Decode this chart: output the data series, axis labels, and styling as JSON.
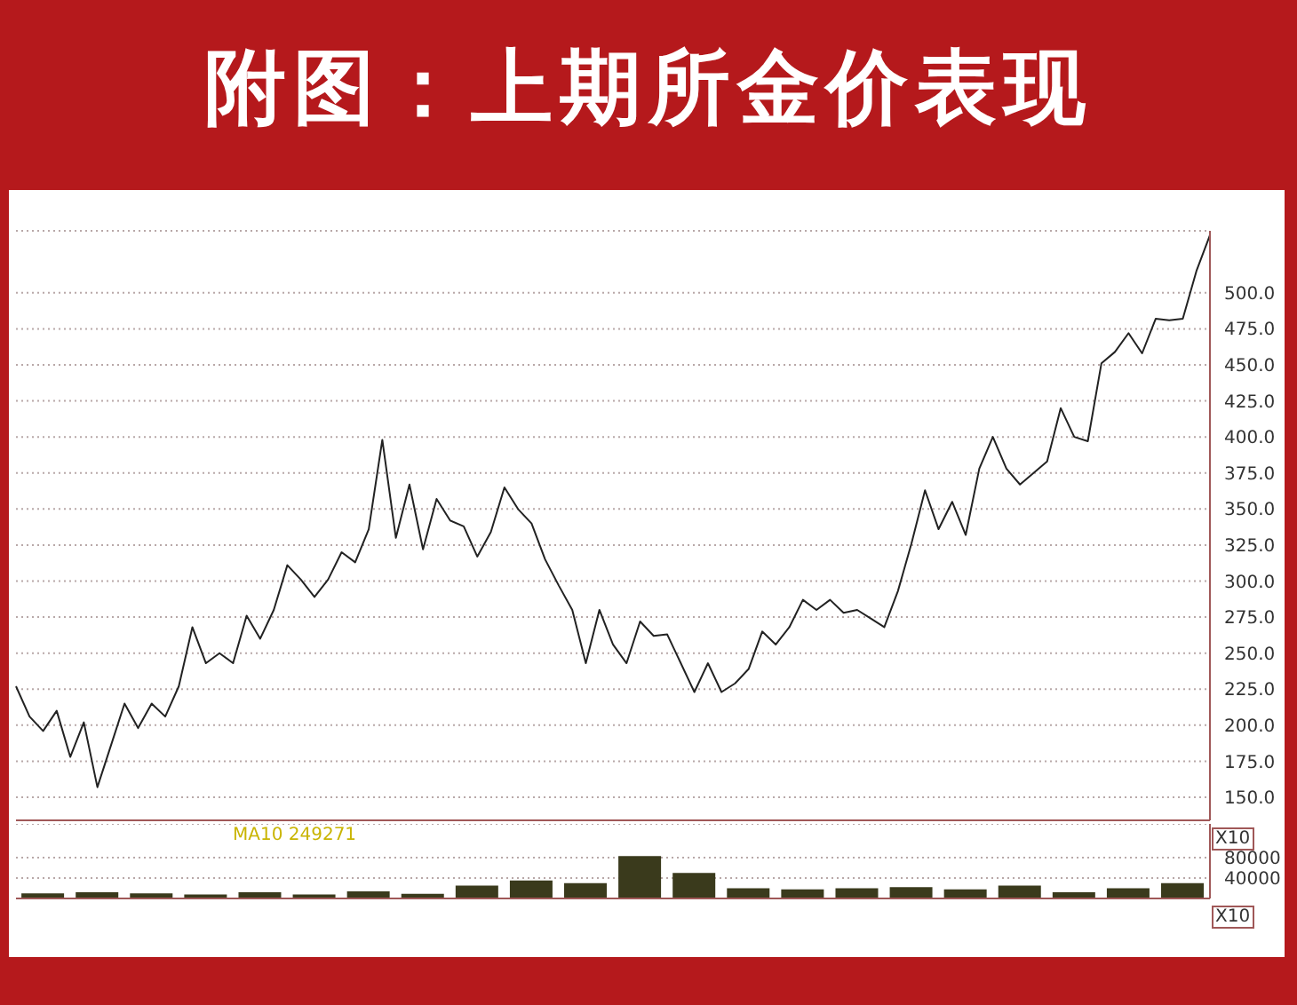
{
  "chart_data": [
    {
      "type": "line",
      "title": "附图：上期所金价表现",
      "categories": [
        null,
        null,
        null,
        null,
        null,
        null,
        null,
        null,
        null,
        null,
        null,
        null,
        null,
        null,
        null,
        null,
        null,
        null,
        null,
        null,
        null,
        null,
        null,
        null,
        null,
        null,
        null,
        null,
        null,
        null,
        null,
        null,
        null,
        null,
        null,
        null,
        null,
        null,
        null,
        null,
        null,
        null,
        null,
        null,
        null,
        null,
        null,
        null,
        null,
        null,
        null,
        null,
        null,
        null,
        null,
        null,
        null,
        null,
        null,
        null,
        null,
        null,
        null,
        null,
        null,
        null,
        null,
        null,
        null,
        null,
        null,
        null,
        null,
        null,
        null,
        null,
        null,
        null,
        null,
        null,
        null,
        null,
        null,
        null,
        null,
        null,
        null,
        null,
        null
      ],
      "series": [
        {
          "color": "#222222",
          "values": [
            227,
            206,
            196,
            210,
            178,
            202,
            157,
            186,
            215,
            198,
            215,
            206,
            227,
            268,
            243,
            250,
            243,
            276,
            260,
            280,
            311,
            301,
            289,
            301,
            320,
            313,
            336,
            398,
            330,
            367,
            322,
            357,
            342,
            338,
            317,
            334,
            365,
            350,
            340,
            315,
            297,
            280,
            243,
            280,
            256,
            243,
            272,
            262,
            263,
            243,
            223,
            243,
            223,
            229,
            239,
            265,
            256,
            268,
            287,
            280,
            287,
            278,
            280,
            274,
            268,
            293,
            326,
            363,
            336,
            355,
            332,
            378,
            400,
            378,
            367,
            375,
            383,
            420,
            400,
            397,
            451,
            459,
            472,
            458,
            482,
            481,
            482,
            515,
            540
          ]
        }
      ],
      "ylim": [
        134,
        543
      ],
      "yticks": [
        {
          "value": 150,
          "label": "150.0"
        },
        {
          "value": 175,
          "label": "175.0"
        },
        {
          "value": 200,
          "label": "200.0"
        },
        {
          "value": 225,
          "label": "225.0"
        },
        {
          "value": 250,
          "label": "250.0"
        },
        {
          "value": 275,
          "label": "275.0"
        },
        {
          "value": 300,
          "label": "300.0"
        },
        {
          "value": 325,
          "label": "325.0"
        },
        {
          "value": 350,
          "label": "350.0"
        },
        {
          "value": 375,
          "label": "375.0"
        },
        {
          "value": 400,
          "label": "400.0"
        },
        {
          "value": 425,
          "label": "425.0"
        },
        {
          "value": 450,
          "label": "450.0"
        },
        {
          "value": 475,
          "label": "475.0"
        },
        {
          "value": 500,
          "label": "500.0"
        }
      ],
      "grid": "y",
      "tick_labels": "y",
      "annotations": [
        "X10"
      ]
    },
    {
      "type": "bar",
      "categories": [
        null,
        null,
        null,
        null,
        null,
        null,
        null,
        null,
        null,
        null,
        null,
        null,
        null,
        null,
        null,
        null,
        null,
        null,
        null,
        null,
        null,
        null
      ],
      "series": [
        {
          "color": "#3a3a1c",
          "values": [
            10000,
            12000,
            10000,
            8000,
            12000,
            8000,
            14000,
            9000,
            25000,
            35000,
            30000,
            83000,
            50000,
            20000,
            18000,
            20000,
            22000,
            18000,
            25000,
            12000,
            20000,
            30000
          ]
        }
      ],
      "ylim": [
        0,
        146000
      ],
      "yticks": [
        40000,
        80000
      ],
      "grid": "y",
      "tick_labels": "y",
      "annotations": [
        "MA10  249271",
        "X10"
      ]
    }
  ]
}
